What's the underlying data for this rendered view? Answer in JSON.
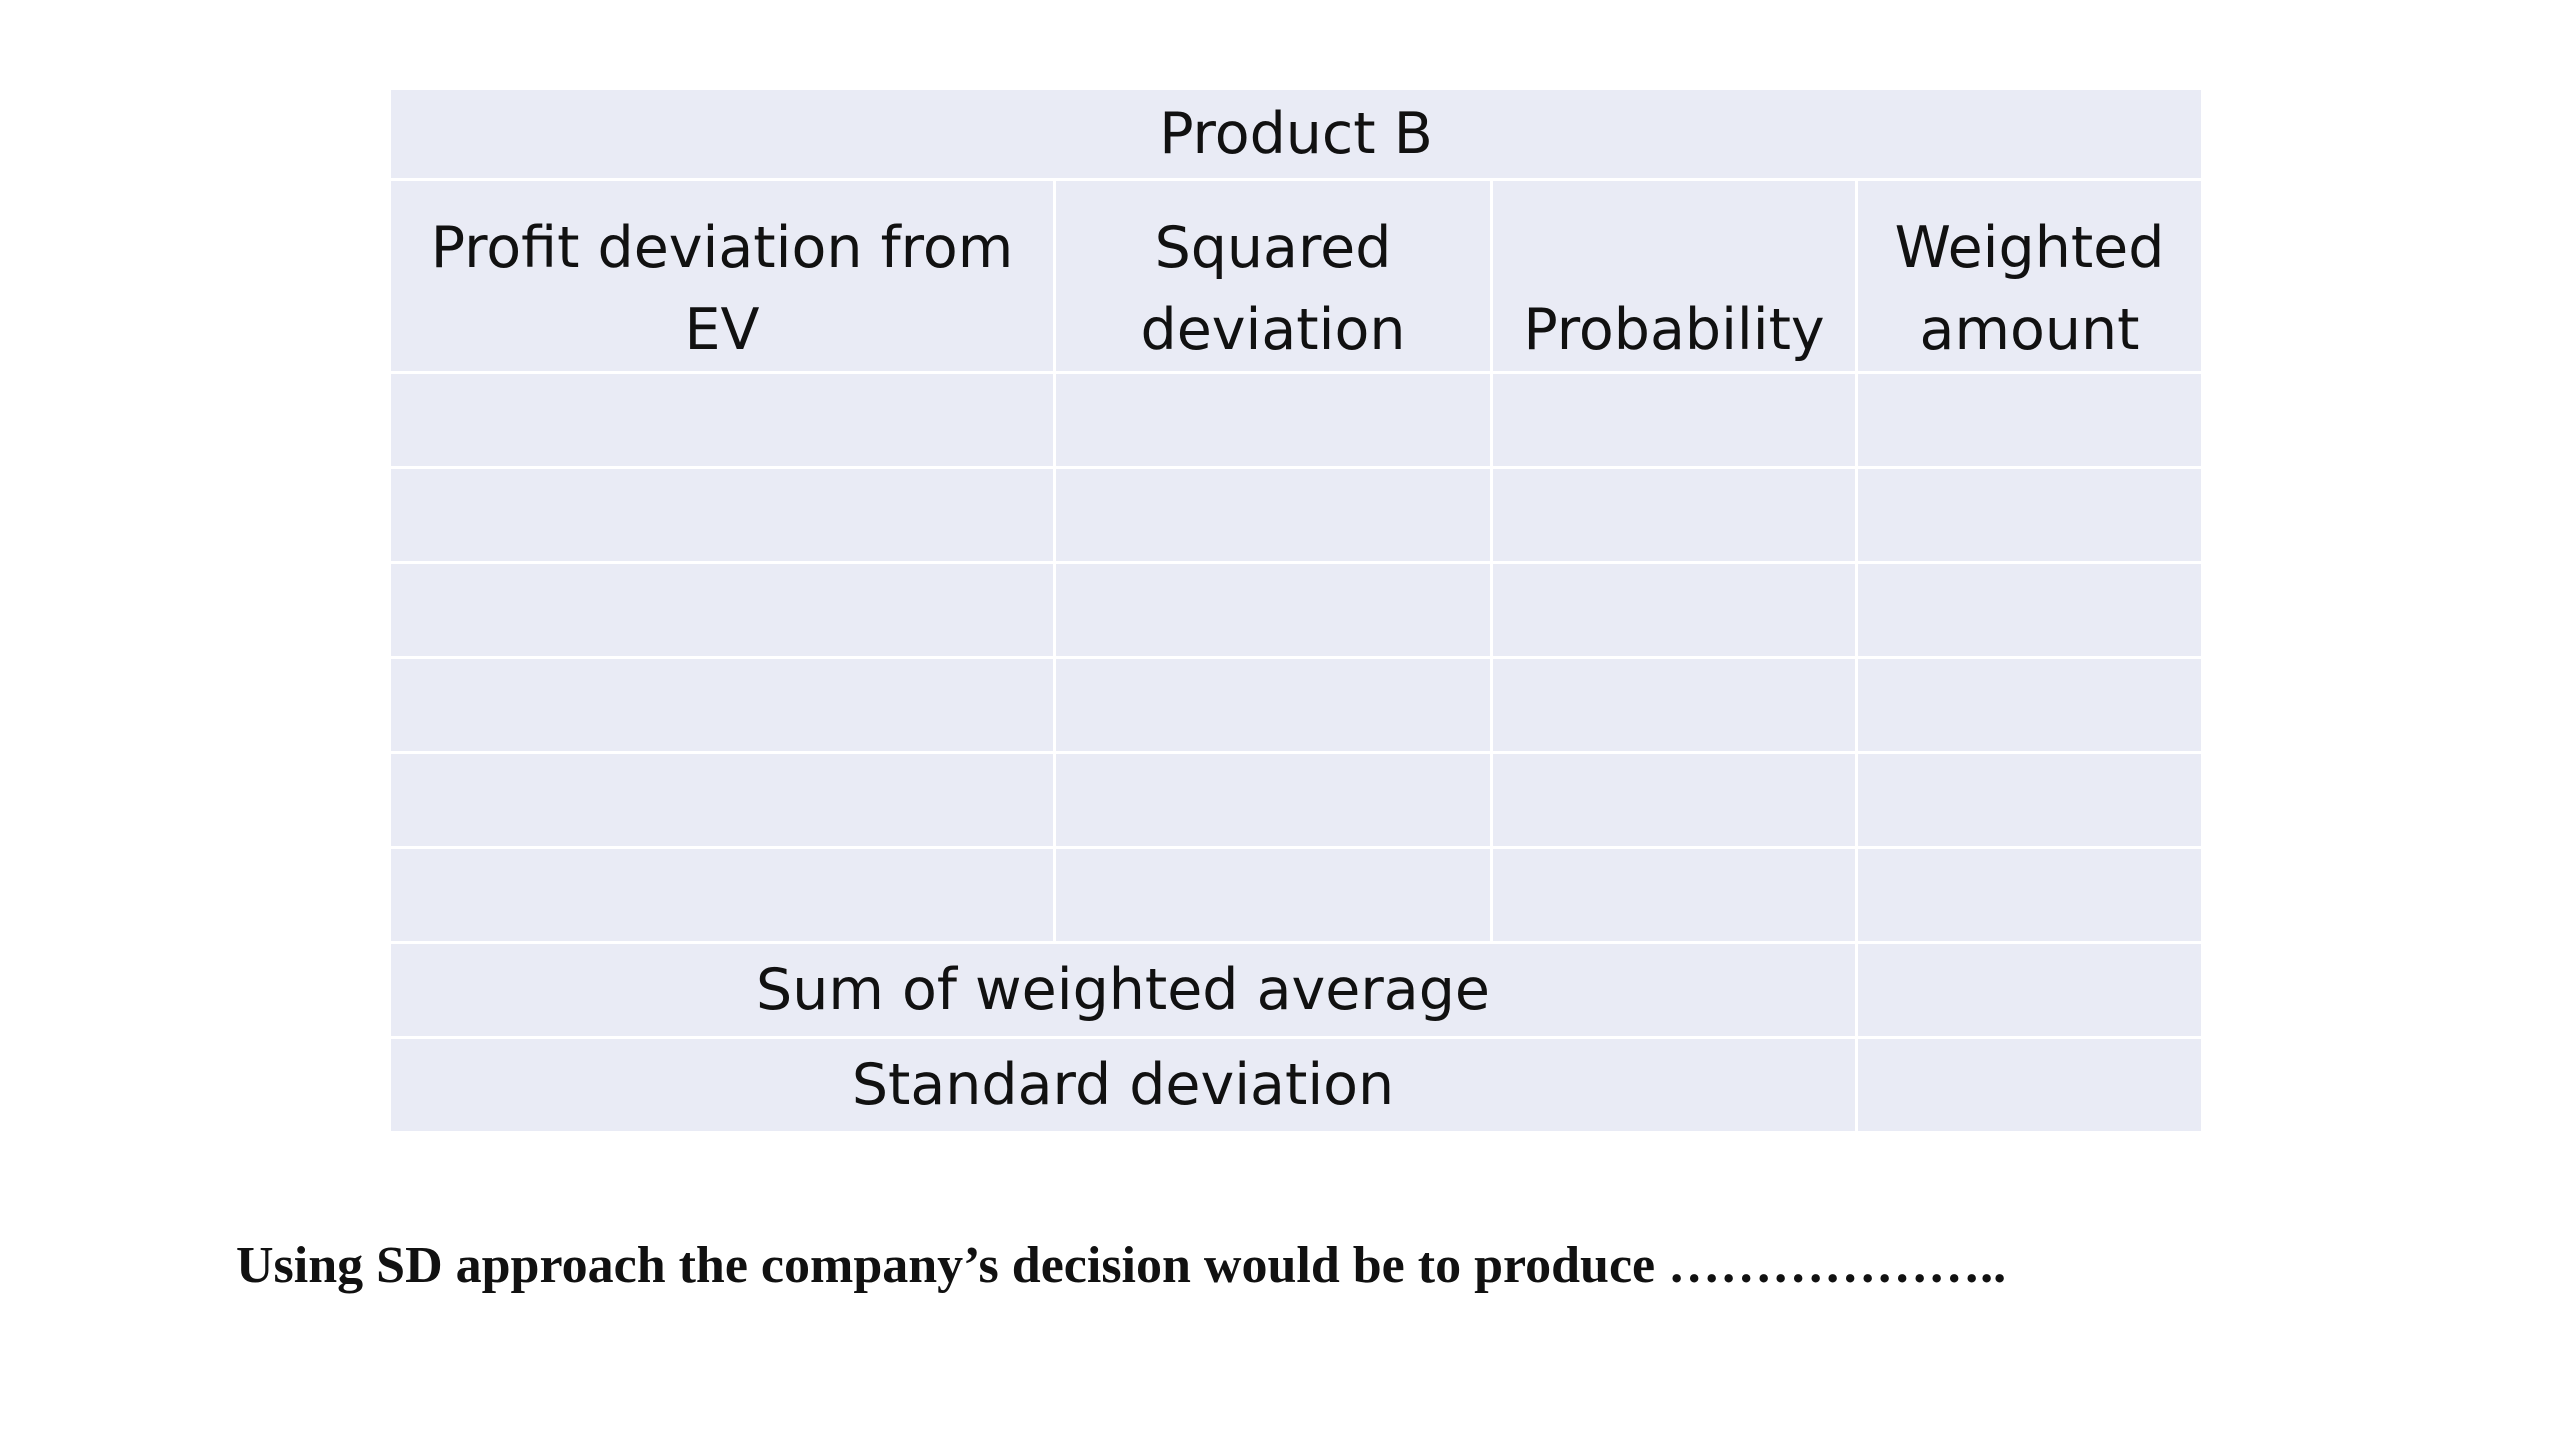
{
  "table": {
    "title": "Product B",
    "columns": [
      "Profit deviation from EV",
      "Squared deviation",
      "Probability",
      "Weighted amount"
    ],
    "row_count": 6,
    "rows": [
      [
        "",
        "",
        "",
        ""
      ],
      [
        "",
        "",
        "",
        ""
      ],
      [
        "",
        "",
        "",
        ""
      ],
      [
        "",
        "",
        "",
        ""
      ],
      [
        "",
        "",
        "",
        ""
      ],
      [
        "",
        "",
        "",
        ""
      ]
    ],
    "summary": [
      {
        "label": "Sum of weighted average",
        "value": ""
      },
      {
        "label": "Standard deviation",
        "value": ""
      }
    ]
  },
  "conclusion": "Using SD approach the company’s decision would be to produce ……………….."
}
